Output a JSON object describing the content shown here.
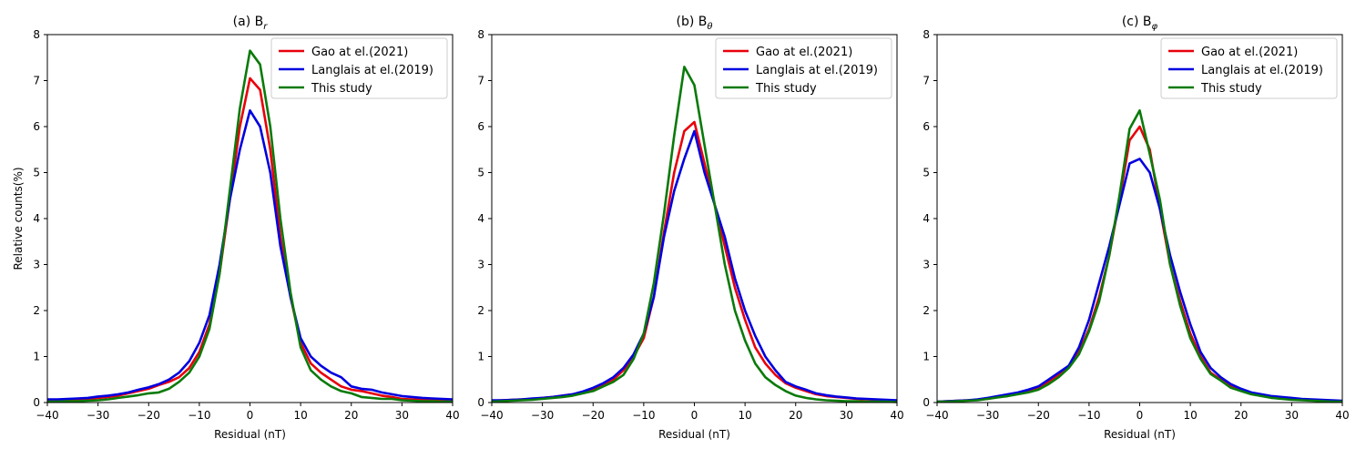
{
  "chart_data": [
    {
      "type": "line",
      "title": {
        "prefix": "(a) B",
        "sub": "r"
      },
      "xlabel": "Residual (nT)",
      "ylabel": "Relative counts(%)",
      "xlim": [
        -40,
        40
      ],
      "ylim": [
        0,
        8
      ],
      "xticks": [
        -40,
        -30,
        -20,
        -10,
        0,
        10,
        20,
        30,
        40
      ],
      "yticks": [
        0,
        1,
        2,
        3,
        4,
        5,
        6,
        7,
        8
      ],
      "legend": "top-right",
      "x": [
        -40,
        -38,
        -36,
        -34,
        -32,
        -30,
        -28,
        -26,
        -24,
        -22,
        -20,
        -18,
        -16,
        -14,
        -12,
        -10,
        -8,
        -6,
        -4,
        -2,
        0,
        2,
        4,
        6,
        8,
        10,
        12,
        14,
        16,
        18,
        20,
        22,
        24,
        26,
        28,
        30,
        32,
        34,
        36,
        38,
        40
      ],
      "series": [
        {
          "name": "Gao at el.(2021)",
          "color": "#e8000b",
          "values": [
            0.05,
            0.05,
            0.06,
            0.07,
            0.08,
            0.1,
            0.12,
            0.15,
            0.2,
            0.25,
            0.3,
            0.38,
            0.45,
            0.55,
            0.75,
            1.1,
            1.7,
            2.8,
            4.4,
            6.0,
            7.05,
            6.8,
            5.5,
            3.6,
            2.3,
            1.3,
            0.85,
            0.65,
            0.5,
            0.35,
            0.28,
            0.25,
            0.2,
            0.15,
            0.12,
            0.08,
            0.07,
            0.06,
            0.05,
            0.05,
            0.04
          ]
        },
        {
          "name": "Langlais at el.(2019)",
          "color": "#0000e0",
          "values": [
            0.07,
            0.07,
            0.08,
            0.09,
            0.1,
            0.13,
            0.15,
            0.18,
            0.22,
            0.28,
            0.33,
            0.4,
            0.5,
            0.65,
            0.9,
            1.3,
            1.9,
            3.0,
            4.4,
            5.5,
            6.35,
            6.0,
            5.0,
            3.4,
            2.3,
            1.4,
            1.0,
            0.8,
            0.65,
            0.55,
            0.35,
            0.3,
            0.28,
            0.22,
            0.18,
            0.14,
            0.12,
            0.1,
            0.09,
            0.08,
            0.07
          ]
        },
        {
          "name": "This study",
          "color": "#0a7a0a",
          "values": [
            0.02,
            0.02,
            0.03,
            0.03,
            0.04,
            0.05,
            0.07,
            0.1,
            0.13,
            0.16,
            0.2,
            0.22,
            0.3,
            0.45,
            0.65,
            1.0,
            1.6,
            2.8,
            4.6,
            6.4,
            7.65,
            7.35,
            6.0,
            4.0,
            2.4,
            1.2,
            0.7,
            0.5,
            0.35,
            0.25,
            0.2,
            0.12,
            0.1,
            0.08,
            0.08,
            0.05,
            0.04,
            0.03,
            0.03,
            0.02,
            0.02
          ]
        }
      ]
    },
    {
      "type": "line",
      "title": {
        "prefix": "(b) B",
        "sub": "θ"
      },
      "xlabel": "Residual (nT)",
      "ylabel": "",
      "xlim": [
        -40,
        40
      ],
      "ylim": [
        0,
        8
      ],
      "xticks": [
        -40,
        -30,
        -20,
        -10,
        0,
        10,
        20,
        30,
        40
      ],
      "yticks": [
        0,
        1,
        2,
        3,
        4,
        5,
        6,
        7,
        8
      ],
      "legend": "top-right",
      "x": [
        -40,
        -38,
        -36,
        -34,
        -32,
        -30,
        -28,
        -26,
        -24,
        -22,
        -20,
        -18,
        -16,
        -14,
        -12,
        -10,
        -8,
        -6,
        -4,
        -2,
        0,
        2,
        4,
        6,
        8,
        10,
        12,
        14,
        16,
        18,
        20,
        22,
        24,
        26,
        28,
        30,
        32,
        34,
        36,
        38,
        40
      ],
      "series": [
        {
          "name": "Gao at el.(2021)",
          "color": "#e8000b",
          "values": [
            0.04,
            0.05,
            0.06,
            0.07,
            0.08,
            0.1,
            0.12,
            0.15,
            0.18,
            0.22,
            0.3,
            0.4,
            0.5,
            0.7,
            1.0,
            1.4,
            2.3,
            3.7,
            5.0,
            5.9,
            6.1,
            5.2,
            4.3,
            3.4,
            2.5,
            1.8,
            1.2,
            0.85,
            0.6,
            0.42,
            0.32,
            0.25,
            0.18,
            0.14,
            0.12,
            0.1,
            0.08,
            0.07,
            0.06,
            0.05,
            0.04
          ]
        },
        {
          "name": "Langlais at el.(2019)",
          "color": "#0000e0",
          "values": [
            0.05,
            0.05,
            0.06,
            0.07,
            0.09,
            0.1,
            0.12,
            0.15,
            0.18,
            0.24,
            0.32,
            0.42,
            0.55,
            0.75,
            1.05,
            1.5,
            2.3,
            3.6,
            4.6,
            5.3,
            5.9,
            5.0,
            4.3,
            3.6,
            2.7,
            2.0,
            1.45,
            1.0,
            0.7,
            0.45,
            0.35,
            0.28,
            0.2,
            0.16,
            0.13,
            0.11,
            0.09,
            0.08,
            0.07,
            0.06,
            0.05
          ]
        },
        {
          "name": "This study",
          "color": "#0a7a0a",
          "values": [
            0.02,
            0.03,
            0.04,
            0.05,
            0.06,
            0.08,
            0.1,
            0.12,
            0.15,
            0.2,
            0.25,
            0.35,
            0.45,
            0.6,
            0.95,
            1.5,
            2.6,
            4.1,
            5.8,
            7.3,
            6.9,
            5.6,
            4.3,
            3.0,
            2.0,
            1.35,
            0.85,
            0.55,
            0.38,
            0.25,
            0.15,
            0.1,
            0.07,
            0.05,
            0.04,
            0.03,
            0.03,
            0.02,
            0.02,
            0.02,
            0.01
          ]
        }
      ]
    },
    {
      "type": "line",
      "title": {
        "prefix": "(c) B",
        "sub": "φ"
      },
      "xlabel": "Residual (nT)",
      "ylabel": "",
      "xlim": [
        -40,
        40
      ],
      "ylim": [
        0,
        8
      ],
      "xticks": [
        -40,
        -30,
        -20,
        -10,
        0,
        10,
        20,
        30,
        40
      ],
      "yticks": [
        0,
        1,
        2,
        3,
        4,
        5,
        6,
        7,
        8
      ],
      "legend": "top-right",
      "x": [
        -40,
        -38,
        -36,
        -34,
        -32,
        -30,
        -28,
        -26,
        -24,
        -22,
        -20,
        -18,
        -16,
        -14,
        -12,
        -10,
        -8,
        -6,
        -4,
        -2,
        0,
        2,
        4,
        6,
        8,
        10,
        12,
        14,
        16,
        18,
        20,
        22,
        24,
        26,
        28,
        30,
        32,
        34,
        36,
        38,
        40
      ],
      "series": [
        {
          "name": "Gao at el.(2021)",
          "color": "#e8000b",
          "values": [
            0.02,
            0.03,
            0.04,
            0.05,
            0.06,
            0.08,
            0.12,
            0.15,
            0.2,
            0.25,
            0.3,
            0.45,
            0.6,
            0.8,
            1.1,
            1.6,
            2.3,
            3.2,
            4.4,
            5.7,
            6.0,
            5.5,
            4.2,
            3.0,
            2.2,
            1.5,
            1.0,
            0.65,
            0.5,
            0.35,
            0.28,
            0.2,
            0.15,
            0.12,
            0.1,
            0.08,
            0.06,
            0.05,
            0.04,
            0.03,
            0.03
          ]
        },
        {
          "name": "Langlais at el.(2019)",
          "color": "#0000e0",
          "values": [
            0.02,
            0.03,
            0.04,
            0.05,
            0.07,
            0.1,
            0.14,
            0.18,
            0.22,
            0.28,
            0.35,
            0.5,
            0.65,
            0.8,
            1.2,
            1.8,
            2.6,
            3.4,
            4.3,
            5.2,
            5.3,
            5.0,
            4.2,
            3.2,
            2.4,
            1.7,
            1.1,
            0.75,
            0.55,
            0.4,
            0.3,
            0.22,
            0.18,
            0.14,
            0.12,
            0.1,
            0.08,
            0.07,
            0.06,
            0.05,
            0.04
          ]
        },
        {
          "name": "This study",
          "color": "#0a7a0a",
          "values": [
            0.02,
            0.02,
            0.03,
            0.04,
            0.05,
            0.08,
            0.11,
            0.14,
            0.18,
            0.22,
            0.28,
            0.4,
            0.55,
            0.75,
            1.05,
            1.55,
            2.2,
            3.2,
            4.5,
            5.95,
            6.35,
            5.4,
            4.4,
            3.0,
            2.1,
            1.4,
            0.95,
            0.62,
            0.48,
            0.32,
            0.25,
            0.18,
            0.14,
            0.1,
            0.08,
            0.06,
            0.05,
            0.04,
            0.03,
            0.02,
            0.02
          ]
        }
      ]
    }
  ]
}
